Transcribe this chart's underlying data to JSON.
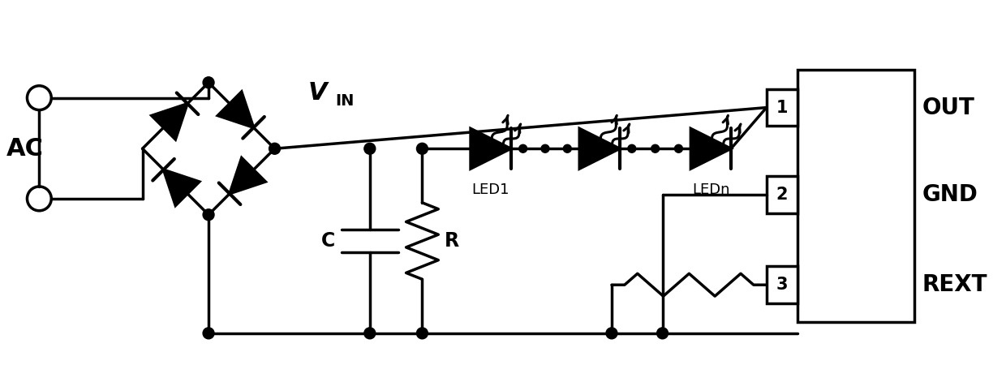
{
  "bg_color": "#ffffff",
  "line_color": "#000000",
  "line_width": 2.5,
  "fig_width": 12.4,
  "fig_height": 4.5,
  "dpi": 100,
  "ac_label": "AC",
  "vin_label": "V",
  "vin_sub": "IN",
  "c_label": "C",
  "r_label": "R",
  "led1_label": "LED1",
  "ledn_label": "LEDn",
  "out_label": "OUT",
  "gnd_label": "GND",
  "rext_label": "REXT",
  "pin1_label": "1",
  "pin2_label": "2",
  "pin3_label": "3",
  "xlim": [
    0,
    12.4
  ],
  "ylim": [
    0,
    4.5
  ]
}
